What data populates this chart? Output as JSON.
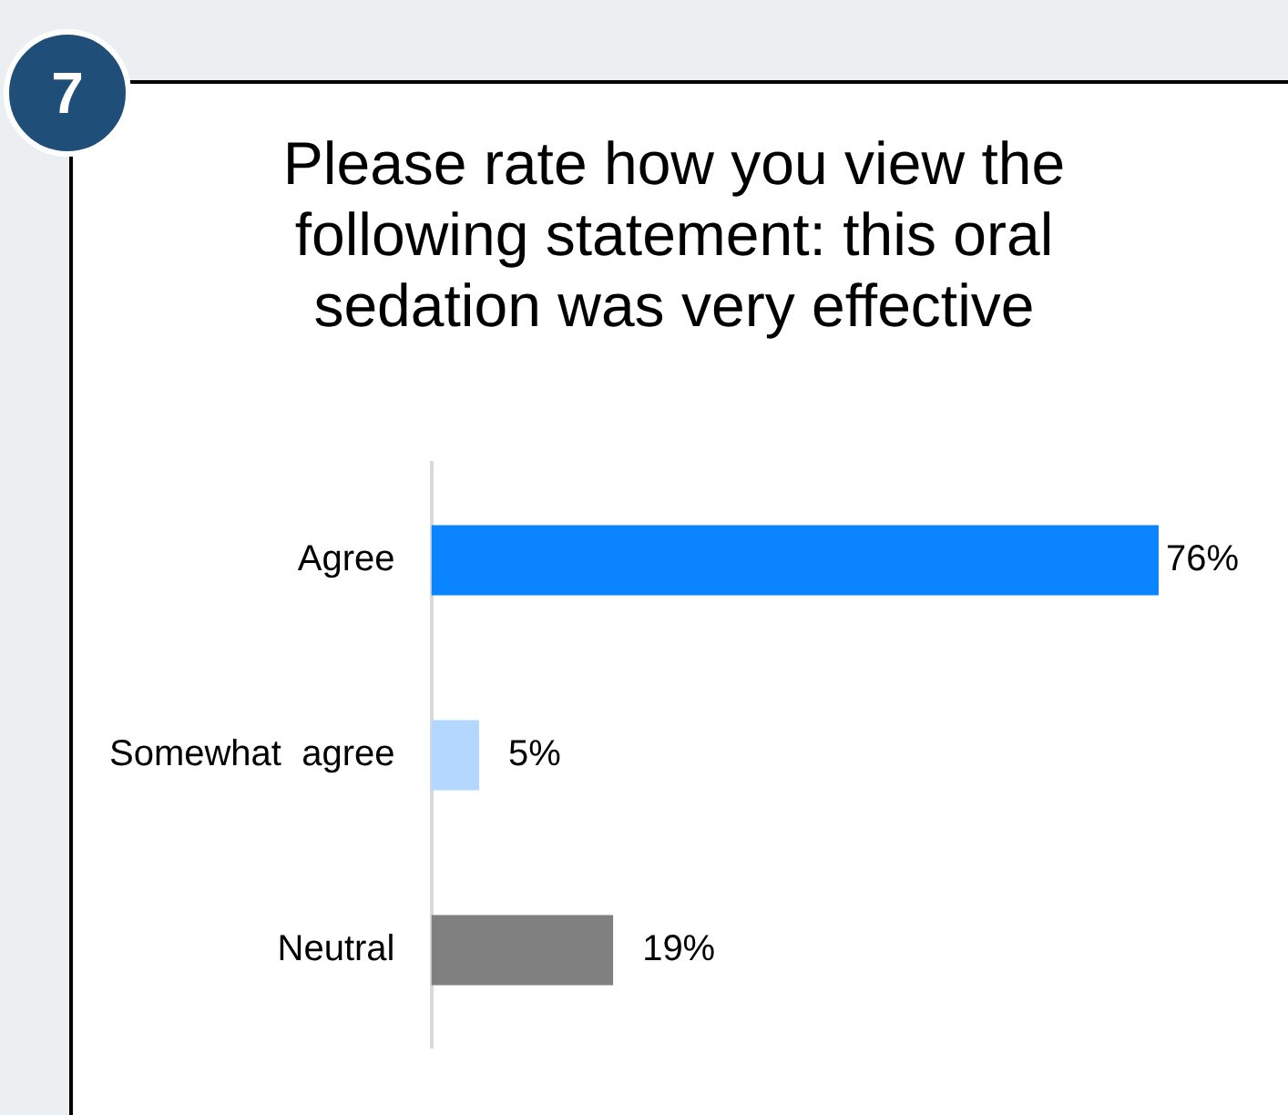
{
  "chart_data": {
    "type": "bar",
    "orientation": "horizontal",
    "title": "Please rate how you view the following statement: this oral sedation was very effective",
    "categories": [
      "Agree",
      "Somewhat  agree",
      "Neutral"
    ],
    "values": [
      76,
      5,
      19
    ],
    "colors": [
      "#0a84ff",
      "#b3d7ff",
      "#808080"
    ],
    "value_labels": [
      "76%",
      "5%",
      "19%"
    ],
    "tick_labels": "y",
    "annotations": [
      "7"
    ]
  }
}
